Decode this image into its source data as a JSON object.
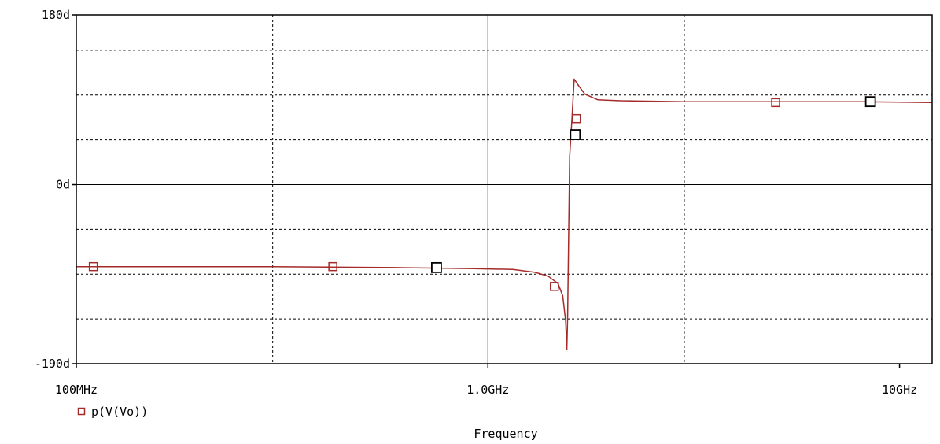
{
  "chart_data": {
    "type": "line",
    "xlabel": "Frequency",
    "xscale": "log",
    "xlim": [
      100000000,
      12000000000
    ],
    "ylim": [
      -190,
      180
    ],
    "y_ticks": [
      {
        "value": 180,
        "label": "180d"
      },
      {
        "value": 0,
        "label": "0d"
      },
      {
        "value": -190,
        "label": "-190d"
      }
    ],
    "x_ticks": [
      {
        "value": 100000000,
        "label": "100MHz"
      },
      {
        "value": 1000000000,
        "label": "1.0GHz"
      },
      {
        "value": 10000000000,
        "label": "10GHz"
      }
    ],
    "grid": true,
    "legend_position": "bottom-left",
    "series": [
      {
        "name": "p(V(Vo))",
        "color": "#a52a2a",
        "marker": "square",
        "x": [
          100000000,
          300000000,
          600000000,
          900000000,
          1150000000,
          1300000000,
          1400000000,
          1480000000,
          1520000000,
          1545000000,
          1555000000,
          1562000000,
          1570000000,
          1580000000,
          1600000000,
          1620000000,
          1660000000,
          1720000000,
          1850000000,
          2100000000,
          3000000000,
          5000000000,
          8000000000,
          12000000000
        ],
        "y": [
          -87,
          -87,
          -88,
          -89,
          -90,
          -93,
          -97,
          -105,
          -118,
          -145,
          -175,
          -140,
          -60,
          30,
          70,
          112,
          105,
          96,
          90,
          89,
          88,
          88,
          88,
          87
        ]
      }
    ],
    "series_markers": [
      {
        "x": 110000000,
        "y": -87
      },
      {
        "x": 420000000,
        "y": -87
      },
      {
        "x": 1450000000,
        "y": -108
      },
      {
        "x": 1640000000,
        "y": 70
      },
      {
        "x": 5000000000,
        "y": 87
      }
    ],
    "cursor_markers": [
      {
        "x": 750000000,
        "y": -88
      },
      {
        "x": 1630000000,
        "y": 53
      },
      {
        "x": 8500000000,
        "y": 88
      }
    ]
  }
}
